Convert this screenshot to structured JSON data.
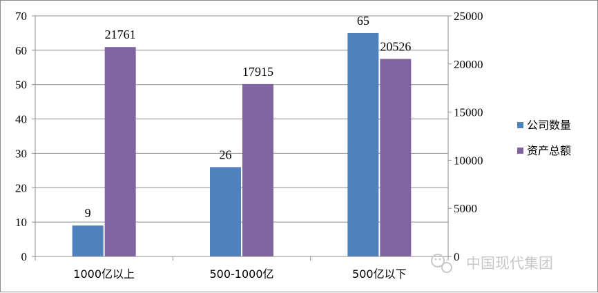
{
  "chart_data": {
    "type": "bar",
    "categories": [
      "1000亿以上",
      "500-1000亿",
      "500亿以下"
    ],
    "series": [
      {
        "name": "公司数量",
        "values": [
          9,
          26,
          65
        ],
        "axis": "left",
        "color": "#4f81bd"
      },
      {
        "name": "资产总额",
        "values": [
          21761,
          17915,
          20526
        ],
        "axis": "right",
        "color": "#8064a2"
      }
    ],
    "ylim_left": [
      0,
      70
    ],
    "yticks_left": [
      0,
      10,
      20,
      30,
      40,
      50,
      60,
      70
    ],
    "ylim_right": [
      0,
      25000
    ],
    "yticks_right": [
      0,
      5000,
      10000,
      15000,
      20000,
      25000
    ],
    "grid": true,
    "legend_position": "right"
  },
  "watermark": {
    "text": "中国现代集团",
    "icon": "wechat-icon"
  }
}
